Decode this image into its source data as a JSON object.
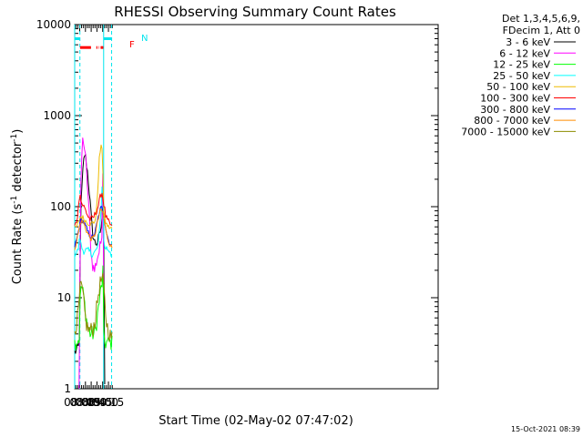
{
  "chart_data": {
    "type": "line",
    "title": "RHESSI Observing Summary Count Rates",
    "xlabel": "Start Time (02-May-02 07:47:02)",
    "ylabel": "Count Rate (s⁻¹ detector⁻¹)",
    "ylabel_main": "Count Rate (s",
    "ylabel_sup1": "-1",
    "ylabel_mid": " detector",
    "ylabel_sup2": "-1",
    "ylabel_end": ")",
    "yscale": "log",
    "xlim": [
      467,
      1415
    ],
    "ylim": [
      1,
      10000
    ],
    "x_unit": "minutes after 00:00 UT",
    "x_ticks": [
      {
        "value": 480,
        "label": "08:00"
      },
      {
        "value": 495,
        "label": "08:15"
      },
      {
        "value": 510,
        "label": "08:30"
      },
      {
        "value": 525,
        "label": "08:45"
      },
      {
        "value": 540,
        "label": "09:00"
      },
      {
        "value": 555,
        "label": "09:15"
      }
    ],
    "y_ticks": [
      {
        "value": 1,
        "label": "1"
      },
      {
        "value": 10,
        "label": "10"
      },
      {
        "value": 100,
        "label": "100"
      },
      {
        "value": 1000,
        "label": "1000"
      },
      {
        "value": 10000,
        "label": "10000"
      }
    ],
    "legend_header": [
      "Det 1,3,4,5,6,9,",
      "FDecim 1, Att 0"
    ],
    "annotations": {
      "flag_F": "F",
      "flag_N": "N"
    },
    "vertical_lines": [
      {
        "x": 467,
        "color": "#00e5ee",
        "style": "solid"
      },
      {
        "x": 480.6,
        "color": "#00e5ee",
        "style": "dashed"
      },
      {
        "x": 542.5,
        "color": "#00e5ee",
        "style": "solid"
      },
      {
        "x": 563.3,
        "color": "#00e5ee",
        "style": "dashed"
      }
    ],
    "flag_bars": [
      {
        "name": "night",
        "label": "N",
        "color": "#00e5ee",
        "y": 7000,
        "segments": [
          [
            467,
            480.6
          ],
          [
            542.5,
            564.5
          ]
        ]
      },
      {
        "name": "flare",
        "label": "F",
        "color": "#ff0000",
        "y": 5600,
        "segments": [
          [
            481,
            509.5
          ],
          [
            523.5,
            526.2
          ],
          [
            529.8,
            531
          ],
          [
            534.5,
            541.8
          ]
        ]
      }
    ],
    "series": [
      {
        "name": "3 - 6 keV",
        "color": "#000000",
        "points": [
          [
            467,
            2.5
          ],
          [
            478,
            2.9
          ],
          [
            480.5,
            3.6
          ],
          [
            481.5,
            55
          ],
          [
            484,
            115
          ],
          [
            488,
            230
          ],
          [
            491,
            330
          ],
          [
            493,
            380
          ],
          [
            496,
            340
          ],
          [
            500,
            250
          ],
          [
            504,
            170
          ],
          [
            508,
            100
          ],
          [
            512,
            60
          ],
          [
            516,
            45
          ],
          [
            520,
            40
          ],
          [
            525,
            40
          ],
          [
            530,
            45
          ],
          [
            535,
            57
          ],
          [
            539,
            72
          ],
          [
            541,
            190
          ],
          [
            542.5,
            780
          ],
          [
            543.5,
            2
          ],
          [
            546,
            1
          ]
        ]
      },
      {
        "name": "6 - 12 keV",
        "color": "#ff00ff",
        "points": [
          [
            478.5,
            1
          ],
          [
            479.5,
            2.8
          ],
          [
            481.5,
            48
          ],
          [
            484,
            260
          ],
          [
            487,
            480
          ],
          [
            489,
            560
          ],
          [
            491,
            520
          ],
          [
            495,
            340
          ],
          [
            500,
            180
          ],
          [
            504,
            95
          ],
          [
            508,
            42
          ],
          [
            511,
            27
          ],
          [
            515,
            22
          ],
          [
            519,
            20
          ],
          [
            523,
            24
          ],
          [
            527,
            29
          ],
          [
            531,
            32
          ],
          [
            535,
            38
          ],
          [
            538,
            55
          ],
          [
            540,
            180
          ],
          [
            541.5,
            1150
          ],
          [
            542.2,
            1350
          ],
          [
            542.6,
            25
          ],
          [
            543,
            1
          ]
        ]
      },
      {
        "name": "12 - 25 keV",
        "color": "#00ff00",
        "points": [
          [
            467,
            3.2
          ],
          [
            476,
            3.5
          ],
          [
            479,
            3.6
          ],
          [
            480.2,
            7.5
          ],
          [
            482,
            11
          ],
          [
            484,
            14
          ],
          [
            487,
            12
          ],
          [
            491,
            10
          ],
          [
            495,
            7
          ],
          [
            500,
            5
          ],
          [
            508,
            4
          ],
          [
            516,
            4
          ],
          [
            522,
            4.5
          ],
          [
            527,
            6.8
          ],
          [
            531,
            9
          ],
          [
            535,
            12
          ],
          [
            539,
            15
          ],
          [
            541,
            21
          ],
          [
            541.8,
            33
          ],
          [
            542.3,
            8
          ],
          [
            543,
            3.5
          ],
          [
            546,
            3.2
          ],
          [
            552,
            3.2
          ],
          [
            563,
            3.2
          ],
          [
            565,
            3.2
          ]
        ]
      },
      {
        "name": "25 - 50 keV",
        "color": "#00ffff",
        "points": [
          [
            467,
            31
          ],
          [
            475,
            32
          ],
          [
            479,
            41
          ],
          [
            480.5,
            60
          ],
          [
            481.5,
            42
          ],
          [
            484,
            36
          ],
          [
            488,
            34
          ],
          [
            494,
            33
          ],
          [
            502,
            32
          ],
          [
            510,
            31
          ],
          [
            518,
            31
          ],
          [
            524,
            33
          ],
          [
            530,
            43
          ],
          [
            535,
            80
          ],
          [
            538,
            160
          ],
          [
            539.5,
            175
          ],
          [
            541,
            115
          ],
          [
            542.5,
            42
          ],
          [
            545,
            36
          ],
          [
            550,
            35
          ],
          [
            555,
            34
          ],
          [
            560,
            33
          ],
          [
            565,
            28
          ]
        ]
      },
      {
        "name": "50 - 100 keV",
        "color": "#eebb00",
        "points": [
          [
            467,
            58
          ],
          [
            472,
            60
          ],
          [
            476,
            65
          ],
          [
            480,
            74
          ],
          [
            484,
            78
          ],
          [
            488,
            76
          ],
          [
            495,
            70
          ],
          [
            502,
            66
          ],
          [
            510,
            65
          ],
          [
            517,
            67
          ],
          [
            523,
            78
          ],
          [
            528,
            180
          ],
          [
            531,
            330
          ],
          [
            534,
            420
          ],
          [
            537,
            460
          ],
          [
            539.5,
            440
          ],
          [
            541,
            200
          ],
          [
            542.5,
            90
          ],
          [
            546,
            70
          ],
          [
            550,
            64
          ],
          [
            555,
            60
          ],
          [
            560,
            58
          ],
          [
            565,
            58
          ]
        ]
      },
      {
        "name": "100 - 300 keV",
        "color": "#ff0000",
        "points": [
          [
            467,
            60
          ],
          [
            472,
            70
          ],
          [
            476,
            90
          ],
          [
            479,
            130
          ],
          [
            481,
            150
          ],
          [
            482.5,
            118
          ],
          [
            486,
            108
          ],
          [
            491,
            100
          ],
          [
            496,
            90
          ],
          [
            502,
            78
          ],
          [
            508,
            72
          ],
          [
            514,
            74
          ],
          [
            520,
            82
          ],
          [
            526,
            95
          ],
          [
            531,
            112
          ],
          [
            535,
            135
          ],
          [
            538,
            145
          ],
          [
            541,
            120
          ],
          [
            545,
            95
          ],
          [
            548,
            78
          ],
          [
            552,
            70
          ],
          [
            558,
            65
          ],
          [
            564,
            60
          ],
          [
            565,
            55
          ]
        ]
      },
      {
        "name": "300 - 800 keV",
        "color": "#0000ff",
        "points": [
          [
            467,
            37
          ],
          [
            472,
            43
          ],
          [
            476,
            52
          ],
          [
            480,
            65
          ],
          [
            484,
            72
          ],
          [
            490,
            68
          ],
          [
            496,
            60
          ],
          [
            502,
            52
          ],
          [
            508,
            47
          ],
          [
            514,
            46
          ],
          [
            520,
            52
          ],
          [
            526,
            68
          ],
          [
            531,
            85
          ],
          [
            535,
            97
          ],
          [
            538,
            96
          ],
          [
            541,
            88
          ],
          [
            545,
            70
          ],
          [
            550,
            52
          ],
          [
            555,
            43
          ],
          [
            560,
            39
          ],
          [
            565,
            36
          ]
        ]
      },
      {
        "name": "800 - 7000 keV",
        "color": "#ff8c00",
        "points": [
          [
            467,
            35
          ],
          [
            472,
            42
          ],
          [
            476,
            50
          ],
          [
            480,
            62
          ],
          [
            484,
            70
          ],
          [
            490,
            66
          ],
          [
            496,
            57
          ],
          [
            502,
            50
          ],
          [
            508,
            45
          ],
          [
            514,
            44
          ],
          [
            520,
            50
          ],
          [
            526,
            65
          ],
          [
            531,
            82
          ],
          [
            535,
            92
          ],
          [
            538,
            90
          ],
          [
            541,
            84
          ],
          [
            545,
            67
          ],
          [
            550,
            50
          ],
          [
            555,
            42
          ],
          [
            560,
            38
          ],
          [
            565,
            35
          ]
        ]
      },
      {
        "name": "7000 - 15000 keV",
        "color": "#8b8b00",
        "points": [
          [
            467,
            4.6
          ],
          [
            472,
            5.2
          ],
          [
            476,
            6.6
          ],
          [
            479,
            9.5
          ],
          [
            481.5,
            12.5
          ],
          [
            484,
            13.5
          ],
          [
            486,
            12.5
          ],
          [
            489,
            10
          ],
          [
            493,
            7
          ],
          [
            497,
            5.2
          ],
          [
            502,
            4.5
          ],
          [
            508,
            4.4
          ],
          [
            514,
            4.5
          ],
          [
            520,
            5.5
          ],
          [
            524,
            7.5
          ],
          [
            528,
            10.5
          ],
          [
            532,
            13.5
          ],
          [
            536,
            15.5
          ],
          [
            539,
            16
          ],
          [
            541,
            15
          ],
          [
            544,
            11
          ],
          [
            547,
            7
          ],
          [
            551,
            5
          ],
          [
            556,
            4.2
          ],
          [
            560,
            3.8
          ],
          [
            565,
            3.6
          ]
        ]
      }
    ]
  },
  "footer": {
    "timestamp": "15-Oct-2021 08:39"
  }
}
